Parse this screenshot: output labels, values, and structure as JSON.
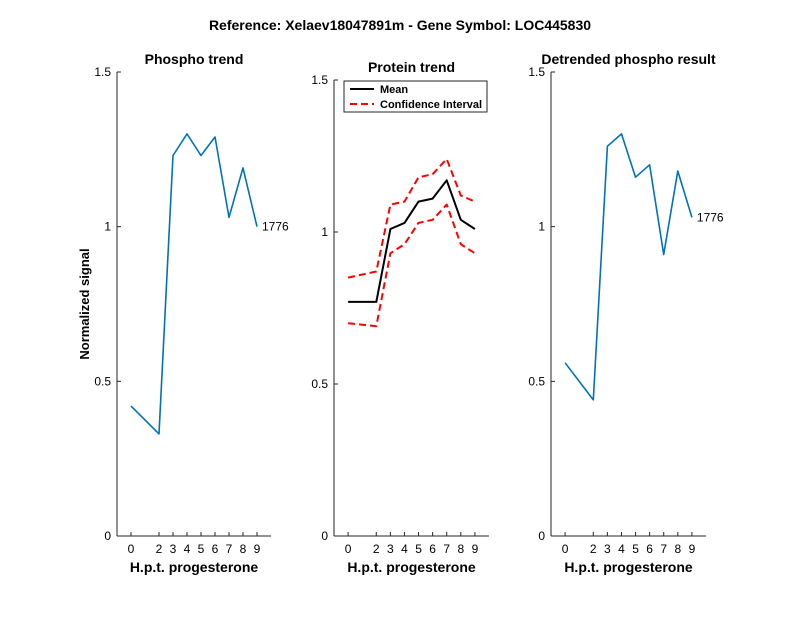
{
  "title": "Reference:  Xelaev18047891m - Gene Symbol:  LOC445830",
  "colors": {
    "blue": "#0072BD",
    "black": "#000000",
    "red": "#FF0000"
  },
  "chart_data": [
    {
      "type": "line",
      "title": "Phospho trend",
      "xlabel": "H.p.t. progesterone",
      "ylabel": "Normalized signal",
      "x": [
        0,
        2,
        3,
        4,
        5,
        6,
        7,
        8,
        9
      ],
      "ylim": [
        0,
        1.5
      ],
      "yticks": [
        0,
        0.5,
        1,
        1.5
      ],
      "yticklabels": [
        "0",
        "0.5",
        "1",
        "1.5"
      ],
      "series": [
        {
          "values": [
            0.42,
            0.33,
            1.23,
            1.3,
            1.23,
            1.29,
            1.03,
            1.19,
            1.0
          ],
          "color": "#0072BD",
          "style": "solid"
        }
      ],
      "annotation": "1776"
    },
    {
      "type": "line",
      "title": "Protein trend",
      "xlabel": "H.p.t. progesterone",
      "x": [
        0,
        2,
        3,
        4,
        5,
        6,
        7,
        8,
        9
      ],
      "ylim": [
        0,
        1.5
      ],
      "yticks": [
        0,
        0.5,
        1,
        1.5
      ],
      "yticklabels": [
        "0",
        "0.5",
        "1",
        "1.5"
      ],
      "legend_position": "top-left",
      "series": [
        {
          "name": "Mean",
          "values": [
            0.77,
            0.77,
            1.01,
            1.03,
            1.1,
            1.11,
            1.17,
            1.04,
            1.01
          ],
          "color": "#000000",
          "style": "solid"
        },
        {
          "name": "Confidence Interval",
          "values": [
            0.85,
            0.87,
            1.09,
            1.1,
            1.18,
            1.19,
            1.24,
            1.12,
            1.1
          ],
          "color": "#FF0000",
          "style": "dashed"
        },
        {
          "values": [
            0.7,
            0.69,
            0.93,
            0.96,
            1.03,
            1.04,
            1.09,
            0.96,
            0.93
          ],
          "color": "#FF0000",
          "style": "dashed"
        }
      ]
    },
    {
      "type": "line",
      "title": "Detrended phospho result",
      "xlabel": "H.p.t. progesterone",
      "x": [
        0,
        2,
        3,
        4,
        5,
        6,
        7,
        8,
        9
      ],
      "ylim": [
        0,
        1.5
      ],
      "yticks": [
        0,
        0.5,
        1,
        1.5
      ],
      "yticklabels": [
        "0",
        "0.5",
        "1",
        "1.5"
      ],
      "series": [
        {
          "values": [
            0.56,
            0.44,
            1.26,
            1.3,
            1.16,
            1.2,
            0.91,
            1.18,
            1.03
          ],
          "color": "#0072BD",
          "style": "solid"
        }
      ],
      "annotation": "1776"
    }
  ]
}
